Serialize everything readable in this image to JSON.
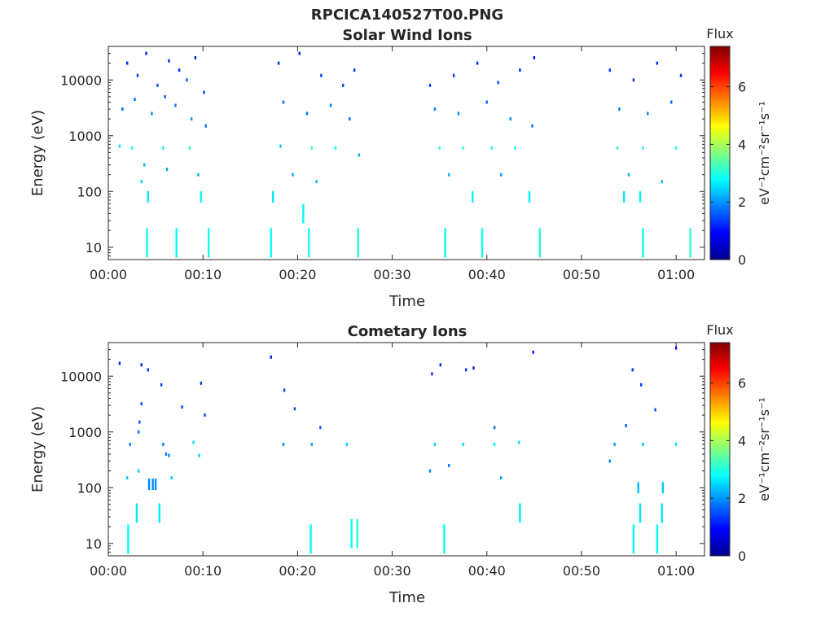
{
  "figure_title": "RPCICA140527T00.PNG",
  "colors": {
    "axis": "#262626",
    "background": "#ffffff"
  },
  "chart_data": [
    {
      "type": "heatmap",
      "title": "Solar Wind Ions",
      "xlabel": "Time",
      "ylabel": "Energy (eV)",
      "x_unit": "minutes after 00:00",
      "xlim": [
        0,
        63
      ],
      "ylim": [
        6,
        40000
      ],
      "y_scale": "log",
      "xtick_labels": [
        "00:00",
        "00:10",
        "00:20",
        "00:30",
        "00:40",
        "00:50",
        "01:00"
      ],
      "xtick_values": [
        0,
        10,
        20,
        30,
        40,
        50,
        60
      ],
      "ytick_labels": [
        "10",
        "100",
        "1000",
        "10000"
      ],
      "ytick_values": [
        10,
        100,
        1000,
        10000
      ],
      "colorbar": {
        "label": "Flux",
        "unit_label": "eV⁻¹cm⁻²sr⁻¹s⁻¹",
        "range": [
          0,
          7.4
        ],
        "tick_labels": [
          "0",
          "2",
          "4",
          "6"
        ],
        "tick_values": [
          0,
          2,
          4,
          6
        ],
        "colormap": "jet"
      },
      "data_segments_minutes": [
        [
          1,
          10.7
        ],
        [
          17,
          26.8
        ],
        [
          33.2,
          45.8
        ],
        [
          52.3,
          62
        ]
      ],
      "points": [
        {
          "t": 2.0,
          "e": 20000,
          "v": 1.2
        },
        {
          "t": 3.1,
          "e": 12000,
          "v": 1.4
        },
        {
          "t": 4.0,
          "e": 30000,
          "v": 1.1
        },
        {
          "t": 5.2,
          "e": 8000,
          "v": 1.5
        },
        {
          "t": 6.4,
          "e": 22000,
          "v": 1.3
        },
        {
          "t": 7.5,
          "e": 15000,
          "v": 1.2
        },
        {
          "t": 8.3,
          "e": 10000,
          "v": 1.6
        },
        {
          "t": 9.2,
          "e": 25000,
          "v": 1.2
        },
        {
          "t": 10.1,
          "e": 6000,
          "v": 1.5
        },
        {
          "t": 1.5,
          "e": 3000,
          "v": 1.7
        },
        {
          "t": 2.8,
          "e": 4500,
          "v": 1.8
        },
        {
          "t": 4.6,
          "e": 2500,
          "v": 1.9
        },
        {
          "t": 6.0,
          "e": 5000,
          "v": 1.6
        },
        {
          "t": 7.1,
          "e": 3500,
          "v": 1.8
        },
        {
          "t": 8.8,
          "e": 2000,
          "v": 2.0
        },
        {
          "t": 10.3,
          "e": 1500,
          "v": 1.7
        },
        {
          "t": 1.2,
          "e": 650,
          "v": 2.5
        },
        {
          "t": 2.5,
          "e": 600,
          "v": 3.1
        },
        {
          "t": 5.8,
          "e": 600,
          "v": 3.0
        },
        {
          "t": 8.6,
          "e": 600,
          "v": 3.2
        },
        {
          "t": 3.8,
          "e": 300,
          "v": 2.3
        },
        {
          "t": 6.2,
          "e": 250,
          "v": 2.1
        },
        {
          "t": 9.5,
          "e": 200,
          "v": 2.2
        },
        {
          "t": 3.5,
          "e": 150,
          "v": 2.4
        },
        {
          "t": 4.2,
          "e": 80,
          "v": 2.6
        },
        {
          "t": 9.8,
          "e": 80,
          "v": 2.7
        },
        {
          "t": 4.1,
          "e": 12,
          "v": 2.9
        },
        {
          "t": 7.2,
          "e": 12,
          "v": 2.8
        },
        {
          "t": 10.6,
          "e": 12,
          "v": 2.9
        },
        {
          "t": 18.0,
          "e": 20000,
          "v": 1.2
        },
        {
          "t": 20.2,
          "e": 30000,
          "v": 1.1
        },
        {
          "t": 22.5,
          "e": 12000,
          "v": 1.4
        },
        {
          "t": 24.8,
          "e": 8000,
          "v": 1.5
        },
        {
          "t": 26.0,
          "e": 15000,
          "v": 1.3
        },
        {
          "t": 18.5,
          "e": 4000,
          "v": 1.7
        },
        {
          "t": 21.0,
          "e": 2500,
          "v": 1.8
        },
        {
          "t": 23.5,
          "e": 3500,
          "v": 1.9
        },
        {
          "t": 25.5,
          "e": 2000,
          "v": 1.7
        },
        {
          "t": 18.2,
          "e": 650,
          "v": 2.4
        },
        {
          "t": 21.5,
          "e": 600,
          "v": 3.2
        },
        {
          "t": 24.0,
          "e": 600,
          "v": 2.8
        },
        {
          "t": 26.5,
          "e": 450,
          "v": 2.2
        },
        {
          "t": 19.5,
          "e": 200,
          "v": 2.1
        },
        {
          "t": 22.0,
          "e": 150,
          "v": 2.3
        },
        {
          "t": 17.4,
          "e": 80,
          "v": 2.6
        },
        {
          "t": 20.6,
          "e": 40,
          "v": 2.7
        },
        {
          "t": 17.2,
          "e": 12,
          "v": 2.8
        },
        {
          "t": 21.2,
          "e": 12,
          "v": 2.9
        },
        {
          "t": 26.4,
          "e": 12,
          "v": 3.0
        },
        {
          "t": 34.0,
          "e": 8000,
          "v": 1.4
        },
        {
          "t": 36.5,
          "e": 12000,
          "v": 1.3
        },
        {
          "t": 39.0,
          "e": 20000,
          "v": 1.2
        },
        {
          "t": 41.2,
          "e": 9000,
          "v": 1.5
        },
        {
          "t": 43.5,
          "e": 15000,
          "v": 1.2
        },
        {
          "t": 45.0,
          "e": 25000,
          "v": 1.1
        },
        {
          "t": 34.5,
          "e": 3000,
          "v": 1.8
        },
        {
          "t": 37.0,
          "e": 2500,
          "v": 1.9
        },
        {
          "t": 40.0,
          "e": 4000,
          "v": 1.7
        },
        {
          "t": 42.5,
          "e": 2000,
          "v": 2.0
        },
        {
          "t": 44.8,
          "e": 1500,
          "v": 1.8
        },
        {
          "t": 35.0,
          "e": 600,
          "v": 3.0
        },
        {
          "t": 37.5,
          "e": 600,
          "v": 3.1
        },
        {
          "t": 40.5,
          "e": 600,
          "v": 3.0
        },
        {
          "t": 43.0,
          "e": 600,
          "v": 2.9
        },
        {
          "t": 36.0,
          "e": 200,
          "v": 2.2
        },
        {
          "t": 41.5,
          "e": 200,
          "v": 2.1
        },
        {
          "t": 38.5,
          "e": 80,
          "v": 2.7
        },
        {
          "t": 44.5,
          "e": 80,
          "v": 2.7
        },
        {
          "t": 35.6,
          "e": 12,
          "v": 2.8
        },
        {
          "t": 39.5,
          "e": 12,
          "v": 2.9
        },
        {
          "t": 45.6,
          "e": 12,
          "v": 3.0
        },
        {
          "t": 53.0,
          "e": 15000,
          "v": 1.3
        },
        {
          "t": 55.5,
          "e": 10000,
          "v": 1.4
        },
        {
          "t": 58.0,
          "e": 20000,
          "v": 1.2
        },
        {
          "t": 60.5,
          "e": 12000,
          "v": 1.3
        },
        {
          "t": 54.0,
          "e": 3000,
          "v": 1.8
        },
        {
          "t": 57.0,
          "e": 2500,
          "v": 1.9
        },
        {
          "t": 59.5,
          "e": 4000,
          "v": 1.7
        },
        {
          "t": 53.8,
          "e": 600,
          "v": 3.2
        },
        {
          "t": 56.5,
          "e": 600,
          "v": 3.1
        },
        {
          "t": 60.0,
          "e": 600,
          "v": 3.0
        },
        {
          "t": 55.0,
          "e": 200,
          "v": 2.2
        },
        {
          "t": 58.5,
          "e": 150,
          "v": 2.3
        },
        {
          "t": 54.5,
          "e": 80,
          "v": 2.6
        },
        {
          "t": 56.2,
          "e": 80,
          "v": 2.7
        },
        {
          "t": 56.5,
          "e": 12,
          "v": 2.8
        },
        {
          "t": 61.5,
          "e": 12,
          "v": 3.1
        }
      ]
    },
    {
      "type": "heatmap",
      "title": "Cometary Ions",
      "xlabel": "Time",
      "ylabel": "Energy (eV)",
      "x_unit": "minutes after 00:00",
      "xlim": [
        0,
        63
      ],
      "ylim": [
        6,
        40000
      ],
      "y_scale": "log",
      "xtick_labels": [
        "00:00",
        "00:10",
        "00:20",
        "00:30",
        "00:40",
        "00:50",
        "01:00"
      ],
      "xtick_values": [
        0,
        10,
        20,
        30,
        40,
        50,
        60
      ],
      "ytick_labels": [
        "10",
        "100",
        "1000",
        "10000"
      ],
      "ytick_values": [
        10,
        100,
        1000,
        10000
      ],
      "colorbar": {
        "label": "Flux",
        "unit_label": "eV⁻¹cm⁻²sr⁻¹s⁻¹",
        "range": [
          0,
          7.4
        ],
        "tick_labels": [
          "0",
          "2",
          "4",
          "6"
        ],
        "tick_values": [
          0,
          2,
          4,
          6
        ],
        "colormap": "jet"
      },
      "points": [
        {
          "t": 1.2,
          "e": 17000,
          "v": 1.2
        },
        {
          "t": 3.5,
          "e": 16000,
          "v": 1.2
        },
        {
          "t": 4.2,
          "e": 13000,
          "v": 1.3
        },
        {
          "t": 5.6,
          "e": 7000,
          "v": 1.4
        },
        {
          "t": 9.8,
          "e": 7500,
          "v": 1.3
        },
        {
          "t": 3.5,
          "e": 3200,
          "v": 1.5
        },
        {
          "t": 7.8,
          "e": 2800,
          "v": 1.5
        },
        {
          "t": 10.2,
          "e": 2000,
          "v": 1.4
        },
        {
          "t": 3.3,
          "e": 1500,
          "v": 1.6
        },
        {
          "t": 3.2,
          "e": 1000,
          "v": 1.7
        },
        {
          "t": 2.3,
          "e": 600,
          "v": 1.9
        },
        {
          "t": 5.8,
          "e": 600,
          "v": 1.9
        },
        {
          "t": 6.1,
          "e": 400,
          "v": 1.8
        },
        {
          "t": 6.4,
          "e": 380,
          "v": 2.0
        },
        {
          "t": 9.0,
          "e": 650,
          "v": 2.5
        },
        {
          "t": 9.6,
          "e": 380,
          "v": 2.4
        },
        {
          "t": 4.3,
          "e": 115,
          "v": 1.9
        },
        {
          "t": 4.7,
          "e": 115,
          "v": 1.9
        },
        {
          "t": 5.0,
          "e": 115,
          "v": 2.0
        },
        {
          "t": 6.7,
          "e": 150,
          "v": 2.3
        },
        {
          "t": 3.2,
          "e": 200,
          "v": 2.4
        },
        {
          "t": 2.0,
          "e": 150,
          "v": 2.4
        },
        {
          "t": 3.0,
          "e": 35,
          "v": 2.6
        },
        {
          "t": 5.4,
          "e": 35,
          "v": 2.6
        },
        {
          "t": 2.1,
          "e": 12,
          "v": 2.8
        },
        {
          "t": 17.2,
          "e": 22000,
          "v": 1.2
        },
        {
          "t": 18.6,
          "e": 5600,
          "v": 1.4
        },
        {
          "t": 19.7,
          "e": 2600,
          "v": 1.5
        },
        {
          "t": 22.4,
          "e": 1200,
          "v": 1.6
        },
        {
          "t": 18.5,
          "e": 600,
          "v": 2.0
        },
        {
          "t": 21.5,
          "e": 600,
          "v": 2.2
        },
        {
          "t": 25.2,
          "e": 600,
          "v": 2.5
        },
        {
          "t": 21.4,
          "e": 12,
          "v": 2.8
        },
        {
          "t": 25.7,
          "e": 15,
          "v": 2.9
        },
        {
          "t": 26.3,
          "e": 15,
          "v": 3.0
        },
        {
          "t": 34.2,
          "e": 11000,
          "v": 1.3
        },
        {
          "t": 35.1,
          "e": 16000,
          "v": 1.2
        },
        {
          "t": 37.8,
          "e": 13000,
          "v": 1.3
        },
        {
          "t": 38.6,
          "e": 14000,
          "v": 1.2
        },
        {
          "t": 44.9,
          "e": 27000,
          "v": 1.1
        },
        {
          "t": 34.0,
          "e": 200,
          "v": 1.9
        },
        {
          "t": 36.0,
          "e": 250,
          "v": 1.8
        },
        {
          "t": 40.8,
          "e": 1200,
          "v": 1.7
        },
        {
          "t": 34.5,
          "e": 600,
          "v": 2.5
        },
        {
          "t": 37.5,
          "e": 600,
          "v": 2.5
        },
        {
          "t": 40.8,
          "e": 600,
          "v": 2.6
        },
        {
          "t": 43.4,
          "e": 650,
          "v": 2.6
        },
        {
          "t": 41.5,
          "e": 150,
          "v": 2.1
        },
        {
          "t": 43.5,
          "e": 35,
          "v": 2.6
        },
        {
          "t": 35.5,
          "e": 12,
          "v": 2.8
        },
        {
          "t": 55.4,
          "e": 13000,
          "v": 1.3
        },
        {
          "t": 56.3,
          "e": 7000,
          "v": 1.4
        },
        {
          "t": 57.8,
          "e": 2500,
          "v": 1.5
        },
        {
          "t": 60.0,
          "e": 32000,
          "v": 1.1
        },
        {
          "t": 54.7,
          "e": 1300,
          "v": 1.6
        },
        {
          "t": 53.5,
          "e": 600,
          "v": 2.1
        },
        {
          "t": 56.5,
          "e": 600,
          "v": 2.3
        },
        {
          "t": 60.0,
          "e": 600,
          "v": 2.6
        },
        {
          "t": 53.0,
          "e": 300,
          "v": 1.9
        },
        {
          "t": 56.0,
          "e": 100,
          "v": 2.3
        },
        {
          "t": 58.6,
          "e": 100,
          "v": 2.4
        },
        {
          "t": 56.2,
          "e": 35,
          "v": 2.6
        },
        {
          "t": 58.5,
          "e": 35,
          "v": 2.6
        },
        {
          "t": 55.5,
          "e": 12,
          "v": 2.8
        },
        {
          "t": 58.0,
          "e": 12,
          "v": 2.8
        }
      ]
    }
  ]
}
